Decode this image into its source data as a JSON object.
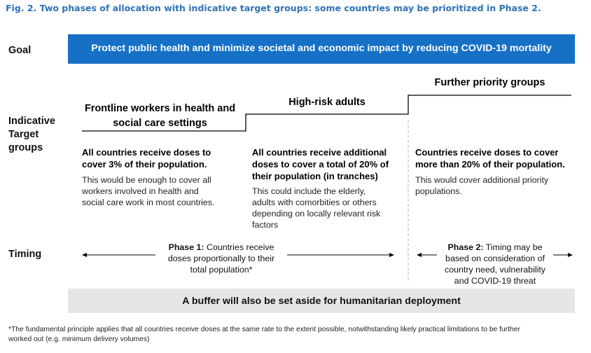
{
  "title": "Fig. 2. Two phases of allocation with indicative target groups: some countries may be prioritized in Phase 2.",
  "labels": {
    "goal": "Goal",
    "target_line1": "Indicative",
    "target_line2": "Target",
    "target_line3": "groups",
    "timing": "Timing"
  },
  "goal_text": "Protect public health and minimize societal and economic impact by reducing COVID-19 mortality",
  "groups": [
    {
      "heading_line1": "Frontline workers in health and",
      "heading_line2": "social care settings",
      "bold_line1": "All countries receive doses to",
      "bold_line2": "cover 3% of their population.",
      "text_line1": "This would be enough to cover all",
      "text_line2": "workers involved in health and",
      "text_line3": "social care work in most countries."
    },
    {
      "heading": "High-risk adults",
      "bold_line1": "All countries receive additional",
      "bold_line2": "doses to cover a total of 20% of",
      "bold_line3": "their population (in tranches)",
      "text_line1": "This could include the elderly,",
      "text_line2": "adults with comorbities or others",
      "text_line3": "depending on locally relevant risk",
      "text_line4": "factors"
    },
    {
      "heading": "Further priority groups",
      "bold_line1": "Countries receive doses to cover",
      "bold_line2": "more than 20% of their population.",
      "text_line1": "This would cover additional priority",
      "text_line2": "populations."
    }
  ],
  "phase1": {
    "label": "Phase 1:",
    "line1_rest": " Countries receive",
    "line2": "doses proportionally to their",
    "line3": "total population*"
  },
  "phase2": {
    "label": "Phase 2:",
    "line1_rest": " Timing may be",
    "line2": "based on consideration of",
    "line3": "country need, vulnerability",
    "line4": "and COVID-19 threat"
  },
  "buffer_text": "A buffer will also be set aside for humanitarian deployment",
  "footnote_line1": "*The fundamental principle applies that all countries receive doses at the same rate to the extent possible, notwithstanding likely practical limitations to be further",
  "footnote_line2": "worked out (e.g. minimum delivery volumes)",
  "colors": {
    "title": "#2f73b6",
    "goal_bar": "#1671c6",
    "buffer_bar": "#e6e6e6"
  }
}
